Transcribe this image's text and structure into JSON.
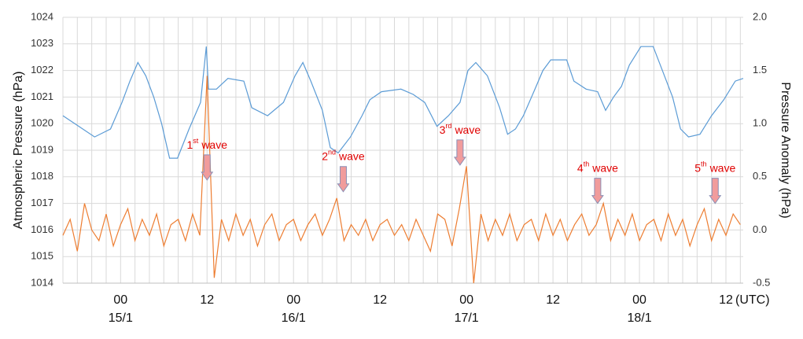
{
  "chart_data": {
    "type": "line",
    "y_label": "Atmospheric Pressure (hPa)",
    "y2_label": "Pressure Anomaly (hPa)",
    "x_unit_label": "(UTC)",
    "xlim": [
      -8,
      86.4
    ],
    "xticks": [
      {
        "value": 0,
        "label": "00"
      },
      12,
      {
        "value": 24,
        "label": "00"
      },
      {
        "value": 36,
        "label": "12"
      },
      {
        "value": 48,
        "label": "00"
      },
      {
        "value": 60,
        "label": "12"
      },
      {
        "value": 72,
        "label": "00"
      },
      {
        "value": 84,
        "label": "12"
      }
    ],
    "xtick_dates": [
      {
        "value": 0,
        "label": "15/1"
      },
      {
        "value": 24,
        "label": "16/1"
      },
      {
        "value": 48,
        "label": "17/1"
      },
      {
        "value": 72,
        "label": "18/1"
      }
    ],
    "xgrid_step": 2,
    "ylim": [
      1014,
      1024
    ],
    "yticks": [
      1014,
      1015,
      1016,
      1017,
      1018,
      1019,
      1020,
      1021,
      1022,
      1023,
      1024
    ],
    "y2lim": [
      -0.5,
      2.0
    ],
    "y2ticks": [
      -0.5,
      {
        "value": 0,
        "label": "0.0"
      },
      {
        "value": 0.5,
        "label": "0.5"
      },
      {
        "value": 1,
        "label": "1.0"
      },
      {
        "value": 1.5,
        "label": "1.5"
      },
      {
        "value": 2,
        "label": "2.0"
      }
    ],
    "grid": true,
    "series": [
      {
        "color": "#5b9bd5",
        "x": [
          -8.0,
          -5.8,
          -3.6,
          -1.4,
          0.2,
          1.3,
          2.4,
          3.5,
          4.6,
          5.7,
          6.8,
          7.9,
          9.5,
          11.1,
          11.9,
          12.2,
          13.3,
          14.9,
          17.1,
          18.2,
          20.4,
          22.6,
          24.2,
          25.3,
          26.4,
          28.0,
          29.1,
          30.2,
          31.9,
          33.5,
          34.6,
          36.2,
          38.9,
          40.6,
          42.2,
          43.9,
          45.5,
          47.1,
          48.2,
          49.3,
          50.9,
          52.6,
          53.7,
          54.8,
          55.9,
          57.5,
          58.6,
          59.7,
          61.9,
          62.9,
          64.6,
          66.2,
          67.3,
          68.4,
          69.5,
          70.6,
          72.2,
          73.9,
          74.9,
          76.6,
          77.7,
          78.8,
          80.4,
          82.0,
          83.7,
          85.3,
          86.4
        ],
        "values": [
          1020.3,
          1019.9,
          1019.5,
          1019.8,
          1020.8,
          1021.6,
          1022.3,
          1021.8,
          1021.0,
          1020.0,
          1018.7,
          1018.7,
          1019.8,
          1020.8,
          1022.9,
          1021.3,
          1021.3,
          1021.7,
          1021.6,
          1020.6,
          1020.3,
          1020.8,
          1021.8,
          1022.3,
          1021.6,
          1020.5,
          1019.1,
          1018.9,
          1019.5,
          1020.3,
          1020.9,
          1021.2,
          1021.3,
          1021.1,
          1020.8,
          1019.9,
          1020.3,
          1020.8,
          1022.0,
          1022.3,
          1021.8,
          1020.6,
          1019.6,
          1019.8,
          1020.3,
          1021.3,
          1022.0,
          1022.4,
          1022.4,
          1021.6,
          1021.3,
          1021.2,
          1020.5,
          1021.0,
          1021.4,
          1022.2,
          1022.9,
          1022.9,
          1022.2,
          1021.0,
          1019.8,
          1019.5,
          1019.6,
          1020.3,
          1020.9,
          1021.6,
          1021.7
        ]
      },
      {
        "color": "#ed7d31",
        "axis": "y2",
        "x": [
          -8,
          -7,
          -6,
          -5,
          -4,
          -3,
          -2,
          -1,
          0,
          1,
          2,
          3,
          4,
          5,
          6,
          7,
          8,
          9,
          10,
          11,
          12,
          13,
          14,
          15,
          16,
          17,
          18,
          19,
          20,
          21,
          22,
          23,
          24,
          25,
          26,
          27,
          28,
          29,
          30,
          31,
          32,
          33,
          34,
          35,
          36,
          37,
          38,
          39,
          40,
          41,
          42,
          43,
          44,
          45,
          46,
          47,
          48,
          49,
          50,
          51,
          52,
          53,
          54,
          55,
          56,
          57,
          58,
          59,
          60,
          61,
          62,
          63,
          64,
          65,
          66,
          67,
          68,
          69,
          70,
          71,
          72,
          73,
          74,
          75,
          76,
          77,
          78,
          79,
          80,
          81,
          82,
          83,
          84,
          85,
          86
        ],
        "values": [
          -0.05,
          0.1,
          -0.2,
          0.25,
          0.0,
          -0.1,
          0.15,
          -0.15,
          0.05,
          0.2,
          -0.1,
          0.1,
          -0.05,
          0.15,
          -0.15,
          0.05,
          0.1,
          -0.1,
          0.15,
          -0.05,
          1.45,
          -0.45,
          0.1,
          -0.1,
          0.15,
          -0.05,
          0.1,
          -0.15,
          0.05,
          0.15,
          -0.1,
          0.05,
          0.1,
          -0.1,
          0.05,
          0.15,
          -0.05,
          0.1,
          0.3,
          -0.1,
          0.05,
          -0.05,
          0.1,
          -0.1,
          0.05,
          0.1,
          -0.05,
          0.05,
          -0.1,
          0.1,
          -0.05,
          -0.2,
          0.15,
          0.1,
          -0.15,
          0.2,
          0.6,
          -0.5,
          0.15,
          -0.1,
          0.1,
          -0.05,
          0.15,
          -0.1,
          0.05,
          0.1,
          -0.1,
          0.15,
          -0.05,
          0.1,
          -0.1,
          0.05,
          0.15,
          -0.05,
          0.05,
          0.25,
          -0.1,
          0.1,
          -0.05,
          0.15,
          -0.1,
          0.05,
          0.1,
          -0.1,
          0.15,
          -0.05,
          0.1,
          -0.15,
          0.05,
          0.2,
          -0.1,
          0.1,
          -0.05,
          0.15,
          0.05
        ]
      }
    ],
    "annotations": [
      {
        "number": "1",
        "suffix": "st",
        "text": "wave",
        "x": 12,
        "y": 0.47
      },
      {
        "number": "2",
        "suffix": "nd",
        "text": "wave",
        "x": 30.9,
        "y": 0.36
      },
      {
        "number": "3",
        "suffix": "rd",
        "text": "wave",
        "x": 47.1,
        "y": 0.61
      },
      {
        "number": "4",
        "suffix": "th",
        "text": "wave",
        "x": 66.2,
        "y": 0.25
      },
      {
        "number": "5",
        "suffix": "th",
        "text": "wave",
        "x": 82.5,
        "y": 0.25
      }
    ]
  }
}
